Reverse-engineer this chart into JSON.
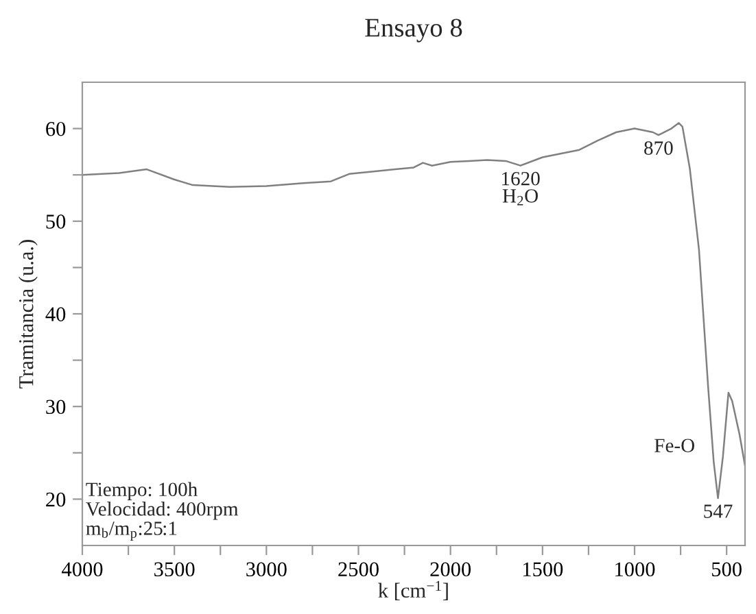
{
  "chart_data": {
    "type": "line",
    "title": "Ensayo 8",
    "xlabel": "k [cm$^{−1}$]",
    "ylabel": "Tramitancia (u.a.)",
    "xlim": [
      4000,
      400
    ],
    "ylim": [
      15,
      65
    ],
    "xticks": [
      4000,
      {
        "value": 3750,
        "label": null
      },
      3500,
      {
        "value": 3250,
        "label": null
      },
      3000,
      {
        "value": 2750,
        "label": null
      },
      2500,
      {
        "value": 2250,
        "label": null
      },
      2000,
      {
        "value": 1750,
        "label": null
      },
      1500,
      {
        "value": 1250,
        "label": null
      },
      1000,
      {
        "value": 750,
        "label": null
      },
      500
    ],
    "yticks": [
      20,
      {
        "value": 25,
        "label": null
      },
      30,
      {
        "value": 35,
        "label": null
      },
      40,
      {
        "value": 45,
        "label": null
      },
      50,
      {
        "value": 55,
        "label": null
      },
      60
    ],
    "grid": false,
    "legend": false,
    "series": [
      {
        "color": "#808080",
        "x": [
          4000,
          3800,
          3650,
          3500,
          3400,
          3200,
          3000,
          2800,
          2650,
          2550,
          2400,
          2300,
          2200,
          2150,
          2100,
          2000,
          1900,
          1800,
          1700,
          1620,
          1500,
          1300,
          1200,
          1100,
          1000,
          900,
          870,
          800,
          760,
          740,
          700,
          650,
          600,
          570,
          547,
          520,
          490,
          470,
          430,
          400
        ],
        "values": [
          55.0,
          55.2,
          55.6,
          54.5,
          53.9,
          53.7,
          53.8,
          54.1,
          54.3,
          55.1,
          55.4,
          55.6,
          55.8,
          56.3,
          56.0,
          56.4,
          56.5,
          56.6,
          56.5,
          56.0,
          56.9,
          57.7,
          58.7,
          59.6,
          60.0,
          59.6,
          59.3,
          60.0,
          60.6,
          60.2,
          55.7,
          46.9,
          32.0,
          24.0,
          20.1,
          24.6,
          31.5,
          30.6,
          27.0,
          23.6
        ]
      }
    ],
    "annotations": [
      {
        "text": "1620\nH$_{2}$O",
        "x": 1620,
        "y": 56.0
      },
      {
        "text": "870",
        "x": 870,
        "y": 59.3
      },
      {
        "text": "547",
        "x": 547,
        "y": 20.1
      },
      {
        "text": "Fe-O",
        "x": 547,
        "y": 20.1
      },
      "Tiempo: 100h\nVelocidad: 400rpm\nm$_{b}$/m$_{p}$:25:1"
    ]
  }
}
